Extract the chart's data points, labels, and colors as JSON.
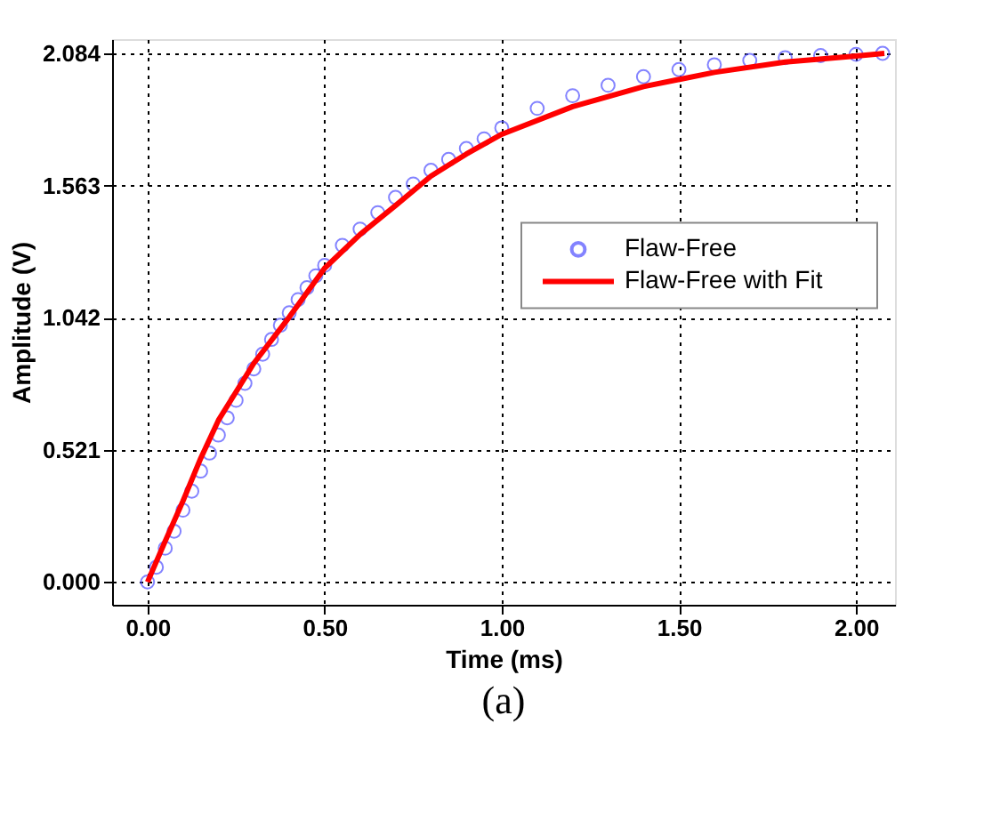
{
  "chart_data": {
    "type": "scatter",
    "xlabel": "Time (ms)",
    "ylabel": "Amplitude (V)",
    "annotations": [
      "(a)"
    ],
    "xlim": [
      -0.1,
      2.11
    ],
    "ylim": [
      -0.09,
      2.14
    ],
    "xticks": [
      {
        "value": 0,
        "label": "0.00"
      },
      {
        "value": 0.5,
        "label": "0.50"
      },
      {
        "value": 1,
        "label": "1.00"
      },
      {
        "value": 1.5,
        "label": "1.50"
      },
      {
        "value": 2,
        "label": "2.00"
      }
    ],
    "yticks": [
      {
        "value": 0,
        "label": "0.000"
      },
      {
        "value": 0.521,
        "label": "0.521"
      },
      {
        "value": 1.042,
        "label": "1.042"
      },
      {
        "value": 1.563,
        "label": "1.563"
      },
      {
        "value": 2.084,
        "label": "2.084"
      }
    ],
    "grid": true,
    "legend": "right",
    "series": [
      {
        "name": "Flaw-Free",
        "marker": "circle",
        "color": "#5050ff",
        "x": [
          0,
          0.025,
          0.05,
          0.075,
          0.1,
          0.125,
          0.15,
          0.175,
          0.2,
          0.225,
          0.25,
          0.275,
          0.3,
          0.325,
          0.35,
          0.375,
          0.4,
          0.425,
          0.45,
          0.475,
          0.5,
          0.55,
          0.6,
          0.65,
          0.7,
          0.75,
          0.8,
          0.85,
          0.9,
          0.95,
          1.0,
          1.1,
          1.2,
          1.3,
          1.4,
          1.5,
          1.6,
          1.7,
          1.8,
          1.9,
          2.0,
          2.075
        ],
        "values": [
          0,
          0.058,
          0.133,
          0.2,
          0.283,
          0.358,
          0.437,
          0.508,
          0.579,
          0.647,
          0.716,
          0.783,
          0.84,
          0.898,
          0.956,
          1.012,
          1.061,
          1.113,
          1.16,
          1.207,
          1.248,
          1.327,
          1.391,
          1.456,
          1.516,
          1.569,
          1.623,
          1.666,
          1.709,
          1.747,
          1.79,
          1.867,
          1.917,
          1.958,
          1.992,
          2.02,
          2.039,
          2.056,
          2.067,
          2.075,
          2.08,
          2.084
        ]
      },
      {
        "name": "Flaw-Free with Fit",
        "type": "line",
        "line_style": "solid",
        "color": "#ff0000",
        "x": [
          0,
          0.05,
          0.1,
          0.15,
          0.2,
          0.3,
          0.4,
          0.5,
          0.6,
          0.7,
          0.8,
          0.9,
          1.0,
          1.2,
          1.4,
          1.6,
          1.8,
          2.0,
          2.08
        ],
        "values": [
          0,
          0.161,
          0.319,
          0.487,
          0.637,
          0.862,
          1.044,
          1.237,
          1.37,
          1.484,
          1.6,
          1.687,
          1.765,
          1.874,
          1.953,
          2.009,
          2.05,
          2.073,
          2.084
        ]
      }
    ]
  }
}
